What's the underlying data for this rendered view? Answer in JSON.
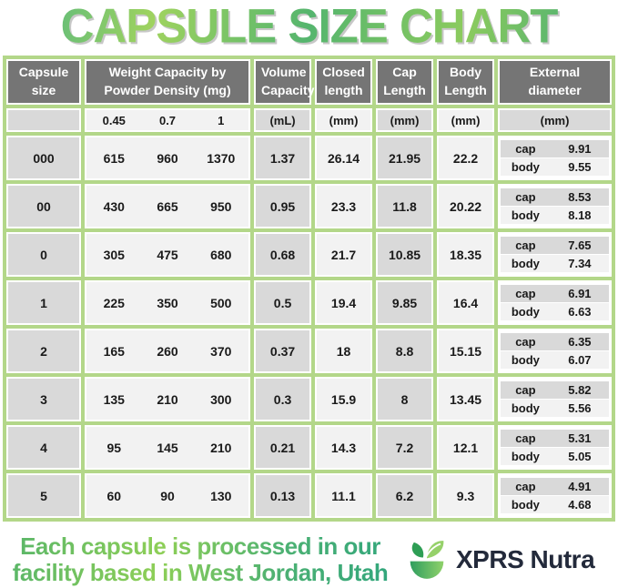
{
  "title": "CAPSULE SIZE CHART",
  "colors": {
    "table_border_green": "#b3d789",
    "header_gray": "#757575",
    "cell_gray": "#d9d9d9",
    "cell_light": "#f2f2f2",
    "title_green_light": "#9fd35f",
    "title_green_dark": "#3ca878",
    "brand_navy": "#232a3b"
  },
  "table": {
    "header": {
      "capsule_size": "Capsule size",
      "weight_capacity": "Weight Capacity by Powder Density (mg)",
      "volume_capacity": "Volume Capacity",
      "closed_length": "Closed length",
      "cap_length": "Cap Length",
      "body_length": "Body Length",
      "external_diameter": "External diameter"
    },
    "subheader": {
      "densities": [
        "0.45",
        "0.7",
        "1"
      ],
      "volume_unit": "(mL)",
      "closed_unit": "(mm)",
      "cap_unit": "(mm)",
      "body_unit": "(mm)",
      "diameter_unit": "(mm)"
    },
    "row_labels": {
      "cap": "cap",
      "body": "body"
    },
    "rows": [
      {
        "size": "000",
        "weights": [
          "615",
          "960",
          "1370"
        ],
        "volume": "1.37",
        "closed": "26.14",
        "cap_len": "21.95",
        "body_len": "22.2",
        "cap_dia": "9.91",
        "body_dia": "9.55"
      },
      {
        "size": "00",
        "weights": [
          "430",
          "665",
          "950"
        ],
        "volume": "0.95",
        "closed": "23.3",
        "cap_len": "11.8",
        "body_len": "20.22",
        "cap_dia": "8.53",
        "body_dia": "8.18"
      },
      {
        "size": "0",
        "weights": [
          "305",
          "475",
          "680"
        ],
        "volume": "0.68",
        "closed": "21.7",
        "cap_len": "10.85",
        "body_len": "18.35",
        "cap_dia": "7.65",
        "body_dia": "7.34"
      },
      {
        "size": "1",
        "weights": [
          "225",
          "350",
          "500"
        ],
        "volume": "0.5",
        "closed": "19.4",
        "cap_len": "9.85",
        "body_len": "16.4",
        "cap_dia": "6.91",
        "body_dia": "6.63"
      },
      {
        "size": "2",
        "weights": [
          "165",
          "260",
          "370"
        ],
        "volume": "0.37",
        "closed": "18",
        "cap_len": "8.8",
        "body_len": "15.15",
        "cap_dia": "6.35",
        "body_dia": "6.07"
      },
      {
        "size": "3",
        "weights": [
          "135",
          "210",
          "300"
        ],
        "volume": "0.3",
        "closed": "15.9",
        "cap_len": "8",
        "body_len": "13.45",
        "cap_dia": "5.82",
        "body_dia": "5.56"
      },
      {
        "size": "4",
        "weights": [
          "95",
          "145",
          "210"
        ],
        "volume": "0.21",
        "closed": "14.3",
        "cap_len": "7.2",
        "body_len": "12.1",
        "cap_dia": "5.31",
        "body_dia": "5.05"
      },
      {
        "size": "5",
        "weights": [
          "60",
          "90",
          "130"
        ],
        "volume": "0.13",
        "closed": "11.1",
        "cap_len": "6.2",
        "body_len": "9.3",
        "cap_dia": "4.91",
        "body_dia": "4.68"
      }
    ]
  },
  "footer": {
    "line1": "Each capsule is processed in our",
    "line2": "facility based in West Jordan, Utah",
    "brand": "XPRS Nutra"
  }
}
